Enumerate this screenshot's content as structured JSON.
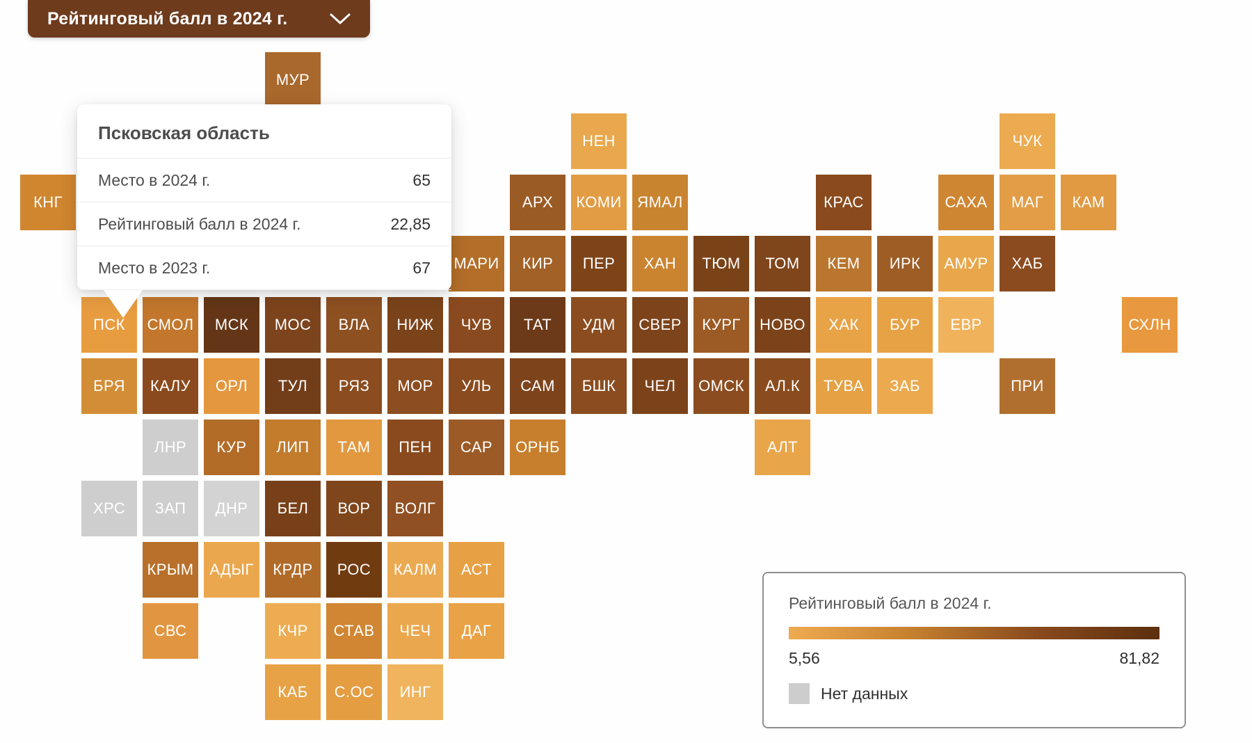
{
  "dropdown": {
    "label": "Рейтинговый балл в 2024 г."
  },
  "tooltip": {
    "title": "Псковская область",
    "rows": [
      {
        "label": "Место в 2024 г.",
        "value": "65"
      },
      {
        "label": "Рейтинговый балл в 2024 г.",
        "value": "22,85"
      },
      {
        "label": "Место в 2023 г.",
        "value": "67"
      }
    ]
  },
  "legend": {
    "title": "Рейтинговый балл в 2024 г.",
    "min": "5,56",
    "max": "81,82",
    "no_data_label": "Нет данных",
    "no_data_color": "#cdcdcd",
    "gradient_stops": [
      "#eeab50",
      "#c5802f",
      "#8a4a1d",
      "#5c2f0e"
    ]
  },
  "chart_data": {
    "type": "heatmap",
    "title": "Рейтинговый балл в 2024 г.",
    "scale": {
      "min": 5.56,
      "max": 81.82,
      "no_data_color": "#cdcdcd"
    },
    "tiles": [
      {
        "code": "МУР",
        "row": 0,
        "col": 4,
        "color": "#a9682c"
      },
      {
        "code": "",
        "row": 1,
        "col": 3.5,
        "color": "#e0963f"
      },
      {
        "code": "НЕН",
        "row": 1,
        "col": 9,
        "color": "#e9a84d"
      },
      {
        "code": "ЧУК",
        "row": 1,
        "col": 16,
        "color": "#ecab50"
      },
      {
        "code": "КНГ",
        "row": 2,
        "col": 0,
        "color": "#d0862f"
      },
      {
        "code": "АРХ",
        "row": 2,
        "col": 8,
        "color": "#9b5b24"
      },
      {
        "code": "КОМИ",
        "row": 2,
        "col": 9,
        "color": "#e29c44"
      },
      {
        "code": "ЯМАЛ",
        "row": 2,
        "col": 10,
        "color": "#c98430"
      },
      {
        "code": "КРАС",
        "row": 2,
        "col": 13,
        "color": "#8b4a1d"
      },
      {
        "code": "САХА",
        "row": 2,
        "col": 15,
        "color": "#cf8632"
      },
      {
        "code": "МАГ",
        "row": 2,
        "col": 16,
        "color": "#e39d46"
      },
      {
        "code": "КАМ",
        "row": 2,
        "col": 17,
        "color": "#e19a42"
      },
      {
        "code": "МАРИ",
        "row": 3,
        "col": 7,
        "color": "#b36e29"
      },
      {
        "code": "КИР",
        "row": 3,
        "col": 8,
        "color": "#a26127"
      },
      {
        "code": "ПЕР",
        "row": 3,
        "col": 9,
        "color": "#7e4418"
      },
      {
        "code": "ХАН",
        "row": 3,
        "col": 10,
        "color": "#ca8430"
      },
      {
        "code": "ТЮМ",
        "row": 3,
        "col": 11,
        "color": "#7a4217"
      },
      {
        "code": "ТОМ",
        "row": 3,
        "col": 12,
        "color": "#7f451b"
      },
      {
        "code": "КЕМ",
        "row": 3,
        "col": 13,
        "color": "#ba762e"
      },
      {
        "code": "ИРК",
        "row": 3,
        "col": 14,
        "color": "#9e5d25"
      },
      {
        "code": "АМУР",
        "row": 3,
        "col": 15,
        "color": "#e9a74b"
      },
      {
        "code": "ХАБ",
        "row": 3,
        "col": 16,
        "color": "#8b4b1e"
      },
      {
        "code": "ПСК",
        "row": 4,
        "col": 1,
        "color": "#e89c40"
      },
      {
        "code": "СМОЛ",
        "row": 4,
        "col": 2,
        "color": "#c2772c"
      },
      {
        "code": "МСК",
        "row": 4,
        "col": 3,
        "color": "#643617"
      },
      {
        "code": "МОС",
        "row": 4,
        "col": 4,
        "color": "#7c441d"
      },
      {
        "code": "ВЛА",
        "row": 4,
        "col": 5,
        "color": "#8d5021"
      },
      {
        "code": "НИЖ",
        "row": 4,
        "col": 6,
        "color": "#7b431a"
      },
      {
        "code": "ЧУВ",
        "row": 4,
        "col": 7,
        "color": "#8a4a1f"
      },
      {
        "code": "ТАТ",
        "row": 4,
        "col": 8,
        "color": "#6c3a18"
      },
      {
        "code": "УДМ",
        "row": 4,
        "col": 9,
        "color": "#8b4c1f"
      },
      {
        "code": "СВЕР",
        "row": 4,
        "col": 10,
        "color": "#7d431b"
      },
      {
        "code": "КУРГ",
        "row": 4,
        "col": 11,
        "color": "#9c5b25"
      },
      {
        "code": "НОВО",
        "row": 4,
        "col": 12,
        "color": "#7c431a"
      },
      {
        "code": "ХАК",
        "row": 4,
        "col": 13,
        "color": "#e8a347"
      },
      {
        "code": "БУР",
        "row": 4,
        "col": 14,
        "color": "#e7a245"
      },
      {
        "code": "ЕВР",
        "row": 4,
        "col": 15,
        "color": "#f0b35c"
      },
      {
        "code": "СХЛН",
        "row": 4,
        "col": 18,
        "color": "#e8983e"
      },
      {
        "code": "БРЯ",
        "row": 5,
        "col": 1,
        "color": "#d38d36"
      },
      {
        "code": "КАЛУ",
        "row": 5,
        "col": 2,
        "color": "#8b4a1d"
      },
      {
        "code": "ОРЛ",
        "row": 5,
        "col": 3,
        "color": "#e4973e"
      },
      {
        "code": "ТУЛ",
        "row": 5,
        "col": 4,
        "color": "#723e1a"
      },
      {
        "code": "РЯЗ",
        "row": 5,
        "col": 5,
        "color": "#8b4c1f"
      },
      {
        "code": "МОР",
        "row": 5,
        "col": 6,
        "color": "#8c4d20"
      },
      {
        "code": "УЛЬ",
        "row": 5,
        "col": 7,
        "color": "#8a4b1e"
      },
      {
        "code": "САМ",
        "row": 5,
        "col": 8,
        "color": "#7d431b"
      },
      {
        "code": "БШК",
        "row": 5,
        "col": 9,
        "color": "#8b4c1f"
      },
      {
        "code": "ЧЕЛ",
        "row": 5,
        "col": 10,
        "color": "#7c431b"
      },
      {
        "code": "ОМСК",
        "row": 5,
        "col": 11,
        "color": "#8b4d20"
      },
      {
        "code": "АЛ.К",
        "row": 5,
        "col": 12,
        "color": "#8a4c1e"
      },
      {
        "code": "ТУВА",
        "row": 5,
        "col": 13,
        "color": "#e5a143"
      },
      {
        "code": "ЗАБ",
        "row": 5,
        "col": 14,
        "color": "#eca94e"
      },
      {
        "code": "ПРИ",
        "row": 5,
        "col": 16,
        "color": "#b16f2f"
      },
      {
        "code": "ЛНР",
        "row": 6,
        "col": 2,
        "color": "#cecece"
      },
      {
        "code": "КУР",
        "row": 6,
        "col": 3,
        "color": "#b26c28"
      },
      {
        "code": "ЛИП",
        "row": 6,
        "col": 4,
        "color": "#c27c2c"
      },
      {
        "code": "ТАМ",
        "row": 6,
        "col": 5,
        "color": "#e2983f"
      },
      {
        "code": "ПЕН",
        "row": 6,
        "col": 6,
        "color": "#8a4a1d"
      },
      {
        "code": "САР",
        "row": 6,
        "col": 7,
        "color": "#9c5b26"
      },
      {
        "code": "ОРНБ",
        "row": 6,
        "col": 8,
        "color": "#c77f2d"
      },
      {
        "code": "АЛТ",
        "row": 6,
        "col": 12,
        "color": "#e9a549"
      },
      {
        "code": "ХРС",
        "row": 7,
        "col": 1,
        "color": "#cecece"
      },
      {
        "code": "ЗАП",
        "row": 7,
        "col": 2,
        "color": "#cecece"
      },
      {
        "code": "ДНР",
        "row": 7,
        "col": 3,
        "color": "#d3d3d3"
      },
      {
        "code": "БЕЛ",
        "row": 7,
        "col": 4,
        "color": "#784019"
      },
      {
        "code": "ВОР",
        "row": 7,
        "col": 5,
        "color": "#7f461c"
      },
      {
        "code": "ВОЛГ",
        "row": 7,
        "col": 6,
        "color": "#905023"
      },
      {
        "code": "КРЫМ",
        "row": 8,
        "col": 2,
        "color": "#b8702a"
      },
      {
        "code": "АДЫГ",
        "row": 8,
        "col": 3,
        "color": "#eba74d"
      },
      {
        "code": "КРДР",
        "row": 8,
        "col": 4,
        "color": "#b16b29"
      },
      {
        "code": "РОС",
        "row": 8,
        "col": 5,
        "color": "#713b10"
      },
      {
        "code": "КАЛМ",
        "row": 8,
        "col": 6,
        "color": "#ebaa51"
      },
      {
        "code": "АСТ",
        "row": 8,
        "col": 7,
        "color": "#e7a044"
      },
      {
        "code": "СВС",
        "row": 9,
        "col": 2,
        "color": "#e29540"
      },
      {
        "code": "КЧР",
        "row": 9,
        "col": 4,
        "color": "#edac52"
      },
      {
        "code": "СТАВ",
        "row": 9,
        "col": 5,
        "color": "#d08632"
      },
      {
        "code": "ЧЕЧ",
        "row": 9,
        "col": 6,
        "color": "#eba74d"
      },
      {
        "code": "ДАГ",
        "row": 9,
        "col": 7,
        "color": "#e9a245"
      },
      {
        "code": "КАБ",
        "row": 10,
        "col": 4,
        "color": "#e7a246"
      },
      {
        "code": "С.ОС",
        "row": 10,
        "col": 5,
        "color": "#e59d41"
      },
      {
        "code": "ИНГ",
        "row": 10,
        "col": 6,
        "color": "#f0b45e"
      }
    ]
  }
}
